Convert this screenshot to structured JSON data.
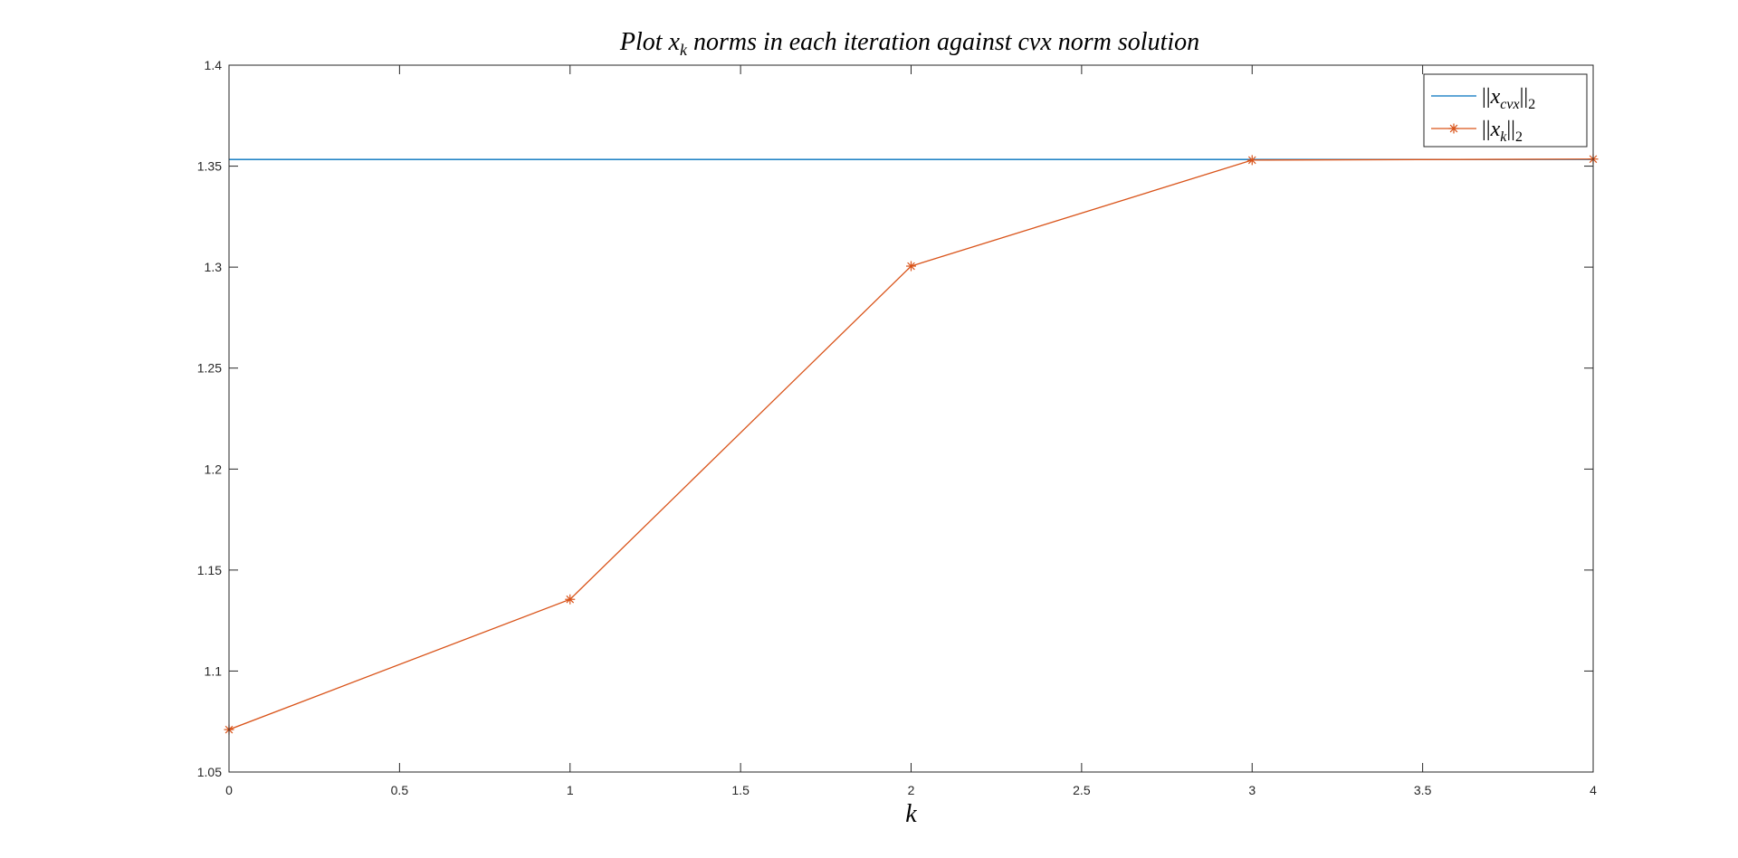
{
  "chart_data": {
    "type": "line",
    "title": "Plot x_k norms in each iteration against cvx norm solution",
    "title_parts": {
      "before": "Plot x",
      "sub": "k",
      "after": " norms in each iteration against cvx norm solution"
    },
    "xlabel": "k",
    "ylabel": "",
    "xlim": [
      0,
      4
    ],
    "ylim": [
      1.05,
      1.4
    ],
    "xticks": [
      0,
      0.5,
      1,
      1.5,
      2,
      2.5,
      3,
      3.5,
      4
    ],
    "xtick_labels": [
      "0",
      "0.5",
      "1",
      "1.5",
      "2",
      "2.5",
      "3",
      "3.5",
      "4"
    ],
    "yticks": [
      1.05,
      1.1,
      1.15,
      1.2,
      1.25,
      1.3,
      1.35,
      1.4
    ],
    "ytick_labels": [
      "1.05",
      "1.1",
      "1.15",
      "1.2",
      "1.25",
      "1.3",
      "1.35",
      "1.4"
    ],
    "grid": false,
    "legend_position": "top-right",
    "series": [
      {
        "name": "||x_cvx||_2",
        "legend": {
          "main": "x",
          "sub": "cvx"
        },
        "color": "#0072bd",
        "marker": "none",
        "x": [
          0,
          4
        ],
        "y": [
          1.3533,
          1.3533
        ]
      },
      {
        "name": "||x_k||_2",
        "legend": {
          "main": "x",
          "sub": "k"
        },
        "color": "#d95319",
        "marker": "asterisk",
        "x": [
          0,
          1,
          2,
          3,
          4
        ],
        "y": [
          1.071,
          1.1355,
          1.3005,
          1.353,
          1.3535
        ]
      }
    ]
  }
}
